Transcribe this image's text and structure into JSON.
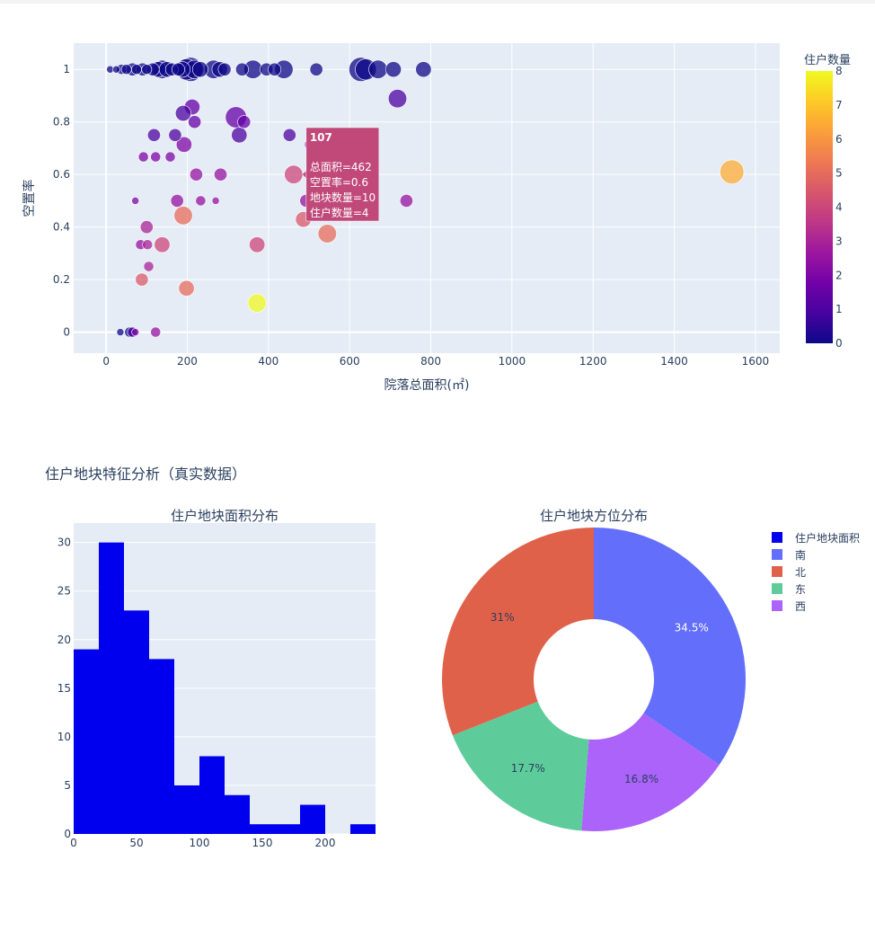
{
  "chart_data": [
    {
      "type": "scatter",
      "xlabel": "院落总面积(㎡)",
      "ylabel": "空置率",
      "xlim": [
        -80,
        1660
      ],
      "ylim": [
        -0.08,
        1.1
      ],
      "xticks": [
        0,
        200,
        400,
        600,
        800,
        1000,
        1200,
        1400,
        1600
      ],
      "yticks": [
        0,
        0.2,
        0.4,
        0.6,
        0.8,
        1
      ],
      "grid": true,
      "colorbar": {
        "title": "住户数量",
        "min": 0,
        "max": 8,
        "ticks": [
          0,
          1,
          2,
          3,
          4,
          5,
          6,
          7,
          8
        ]
      },
      "points": [
        {
          "x": 10,
          "y": 1,
          "size": 1,
          "c": 0
        },
        {
          "x": 25,
          "y": 1,
          "size": 1,
          "c": 0
        },
        {
          "x": 38,
          "y": 1,
          "size": 2,
          "c": 0
        },
        {
          "x": 50,
          "y": 1,
          "size": 2,
          "c": 0
        },
        {
          "x": 65,
          "y": 1,
          "size": 3,
          "c": 0
        },
        {
          "x": 75,
          "y": 1,
          "size": 2,
          "c": 0
        },
        {
          "x": 90,
          "y": 1,
          "size": 3,
          "c": 0
        },
        {
          "x": 100,
          "y": 1,
          "size": 2,
          "c": 0
        },
        {
          "x": 115,
          "y": 1,
          "size": 3,
          "c": 0
        },
        {
          "x": 128,
          "y": 1,
          "size": 4,
          "c": 0
        },
        {
          "x": 138,
          "y": 1,
          "size": 5,
          "c": 0
        },
        {
          "x": 150,
          "y": 1,
          "size": 4,
          "c": 0
        },
        {
          "x": 162,
          "y": 1,
          "size": 3,
          "c": 0
        },
        {
          "x": 178,
          "y": 1,
          "size": 3,
          "c": 0
        },
        {
          "x": 188,
          "y": 1,
          "size": 4,
          "c": 0
        },
        {
          "x": 198,
          "y": 1,
          "size": 6,
          "c": 0
        },
        {
          "x": 208,
          "y": 1,
          "size": 7,
          "c": 0
        },
        {
          "x": 218,
          "y": 1,
          "size": 5,
          "c": 0
        },
        {
          "x": 232,
          "y": 1,
          "size": 4,
          "c": 0
        },
        {
          "x": 265,
          "y": 1,
          "size": 5,
          "c": 0
        },
        {
          "x": 280,
          "y": 1,
          "size": 4,
          "c": 0
        },
        {
          "x": 292,
          "y": 1,
          "size": 3,
          "c": 0
        },
        {
          "x": 335,
          "y": 1,
          "size": 3,
          "c": 0
        },
        {
          "x": 362,
          "y": 1,
          "size": 5,
          "c": 0
        },
        {
          "x": 395,
          "y": 1,
          "size": 3,
          "c": 0
        },
        {
          "x": 415,
          "y": 1,
          "size": 3,
          "c": 0
        },
        {
          "x": 438,
          "y": 1,
          "size": 5,
          "c": 0
        },
        {
          "x": 518,
          "y": 1,
          "size": 3,
          "c": 0
        },
        {
          "x": 628,
          "y": 1,
          "size": 7,
          "c": 0
        },
        {
          "x": 640,
          "y": 1,
          "size": 6,
          "c": 0
        },
        {
          "x": 670,
          "y": 1,
          "size": 5,
          "c": 0
        },
        {
          "x": 708,
          "y": 1,
          "size": 4,
          "c": 0
        },
        {
          "x": 782,
          "y": 1,
          "size": 4,
          "c": 0
        },
        {
          "x": 718,
          "y": 0.889,
          "size": 5,
          "c": 1
        },
        {
          "x": 212,
          "y": 0.857,
          "size": 4,
          "c": 1.5
        },
        {
          "x": 190,
          "y": 0.833,
          "size": 4,
          "c": 1
        },
        {
          "x": 320,
          "y": 0.818,
          "size": 6,
          "c": 1.5
        },
        {
          "x": 218,
          "y": 0.8,
          "size": 3,
          "c": 1.5
        },
        {
          "x": 340,
          "y": 0.8,
          "size": 3,
          "c": 1.5
        },
        {
          "x": 118,
          "y": 0.75,
          "size": 3,
          "c": 1
        },
        {
          "x": 170,
          "y": 0.75,
          "size": 3,
          "c": 1
        },
        {
          "x": 328,
          "y": 0.75,
          "size": 4,
          "c": 1
        },
        {
          "x": 452,
          "y": 0.75,
          "size": 3,
          "c": 1
        },
        {
          "x": 192,
          "y": 0.714,
          "size": 4,
          "c": 2
        },
        {
          "x": 505,
          "y": 0.714,
          "size": 3,
          "c": 2
        },
        {
          "x": 92,
          "y": 0.667,
          "size": 2,
          "c": 2
        },
        {
          "x": 122,
          "y": 0.667,
          "size": 2,
          "c": 2
        },
        {
          "x": 158,
          "y": 0.667,
          "size": 2,
          "c": 2
        },
        {
          "x": 1542,
          "y": 0.61,
          "size": 7,
          "c": 6.5
        },
        {
          "x": 222,
          "y": 0.6,
          "size": 3,
          "c": 2.5
        },
        {
          "x": 282,
          "y": 0.6,
          "size": 3,
          "c": 2.5
        },
        {
          "x": 462,
          "y": 0.6,
          "size": 5,
          "c": 4
        },
        {
          "x": 72,
          "y": 0.5,
          "size": 1,
          "c": 2
        },
        {
          "x": 175,
          "y": 0.5,
          "size": 3,
          "c": 2.5
        },
        {
          "x": 233,
          "y": 0.5,
          "size": 2,
          "c": 2.5
        },
        {
          "x": 270,
          "y": 0.5,
          "size": 1,
          "c": 2.5
        },
        {
          "x": 493,
          "y": 0.5,
          "size": 3,
          "c": 2.5
        },
        {
          "x": 740,
          "y": 0.5,
          "size": 3,
          "c": 2.5
        },
        {
          "x": 190,
          "y": 0.444,
          "size": 5,
          "c": 5
        },
        {
          "x": 486,
          "y": 0.429,
          "size": 4,
          "c": 4.5
        },
        {
          "x": 100,
          "y": 0.4,
          "size": 3,
          "c": 3
        },
        {
          "x": 545,
          "y": 0.375,
          "size": 5,
          "c": 5
        },
        {
          "x": 85,
          "y": 0.333,
          "size": 2,
          "c": 2.5
        },
        {
          "x": 102,
          "y": 0.333,
          "size": 2,
          "c": 3
        },
        {
          "x": 138,
          "y": 0.333,
          "size": 4,
          "c": 4
        },
        {
          "x": 372,
          "y": 0.333,
          "size": 4,
          "c": 4
        },
        {
          "x": 105,
          "y": 0.25,
          "size": 2,
          "c": 3
        },
        {
          "x": 88,
          "y": 0.2,
          "size": 3,
          "c": 4.5
        },
        {
          "x": 198,
          "y": 0.167,
          "size": 4,
          "c": 5
        },
        {
          "x": 372,
          "y": 0.111,
          "size": 5,
          "c": 8
        },
        {
          "x": 35,
          "y": 0,
          "size": 1,
          "c": 0
        },
        {
          "x": 58,
          "y": 0,
          "size": 2,
          "c": 0
        },
        {
          "x": 65,
          "y": 0,
          "size": 2,
          "c": 1
        },
        {
          "x": 72,
          "y": 0,
          "size": 1,
          "c": 2
        },
        {
          "x": 122,
          "y": 0,
          "size": 2,
          "c": 2.5
        }
      ],
      "tooltip": {
        "title": "107",
        "lines": [
          "总面积=462",
          "空置率=0.6",
          "地块数量=10",
          "住户数量=4"
        ],
        "x": 462,
        "y": 0.6
      }
    },
    {
      "type": "bar",
      "figure_title": "住户地块特征分析（真实数据）",
      "title": "住户地块面积分布",
      "bin_start": 0,
      "bin_width": 20,
      "values": [
        19,
        30,
        23,
        18,
        5,
        8,
        4,
        1,
        1,
        3,
        0,
        1
      ],
      "xlim": [
        0,
        240
      ],
      "ylim": [
        0,
        32
      ],
      "xticks": [
        0,
        50,
        100,
        150,
        200
      ],
      "yticks": [
        0,
        5,
        10,
        15,
        20,
        25,
        30
      ],
      "color": "#0000ee"
    },
    {
      "type": "pie",
      "title": "住户地块方位分布",
      "hole": 0.4,
      "slices": [
        {
          "label": "南",
          "value": 34.5,
          "text": "34.5%",
          "color": "#636efa"
        },
        {
          "label": "西",
          "value": 16.8,
          "text": "16.8%",
          "color": "#ab63fa"
        },
        {
          "label": "东",
          "value": 17.7,
          "text": "17.7%",
          "color": "#5ecb9b"
        },
        {
          "label": "北",
          "value": 31.0,
          "text": "31%",
          "color": "#e0614a"
        }
      ],
      "legend": [
        {
          "label": "住户地块面积",
          "color": "#0000ee"
        },
        {
          "label": "南",
          "color": "#636efa"
        },
        {
          "label": "北",
          "color": "#e0614a"
        },
        {
          "label": "东",
          "color": "#5ecb9b"
        },
        {
          "label": "西",
          "color": "#ab63fa"
        }
      ]
    }
  ]
}
